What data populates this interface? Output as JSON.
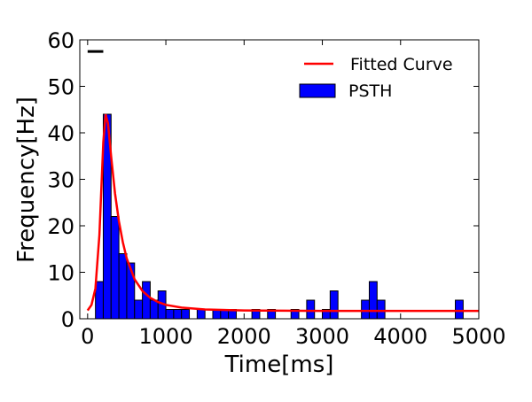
{
  "chart_data": {
    "type": "bar",
    "xlabel": "Time[ms]",
    "ylabel": "Frequency[Hz]",
    "xlim": [
      -100,
      5000
    ],
    "ylim": [
      0,
      60
    ],
    "xticks": [
      0,
      1000,
      2000,
      3000,
      4000,
      5000
    ],
    "yticks": [
      0,
      10,
      20,
      30,
      40,
      50,
      60
    ],
    "legend_position": "upper-right",
    "grid": false,
    "bin_width_ms": 100,
    "series": [
      {
        "name": "PSTH",
        "kind": "histogram",
        "color": "#0000ff",
        "edge_color": "#000000",
        "bins_start_ms": [
          100,
          200,
          300,
          400,
          500,
          600,
          700,
          800,
          900,
          1000,
          1100,
          1200,
          1400,
          1600,
          1700,
          1800,
          2100,
          2300,
          2600,
          2800,
          3000,
          3100,
          3500,
          3600,
          3700,
          4700
        ],
        "values": [
          8,
          44,
          22,
          14,
          12,
          4,
          8,
          4,
          6,
          2,
          2,
          2,
          2,
          2,
          2,
          2,
          2,
          2,
          2,
          4,
          2,
          6,
          4,
          8,
          4,
          4
        ]
      },
      {
        "name": "Fitted Curve",
        "kind": "line",
        "color": "#ff0000",
        "x": [
          0,
          50,
          100,
          150,
          200,
          230,
          260,
          300,
          350,
          400,
          450,
          500,
          600,
          700,
          800,
          900,
          1000,
          1200,
          1500,
          2000,
          3000,
          5000
        ],
        "y": [
          1.8,
          3.0,
          6.5,
          18,
          38,
          44,
          42,
          35,
          27,
          21,
          16.5,
          13,
          8.5,
          6,
          4.5,
          3.6,
          3.0,
          2.4,
          2.0,
          1.8,
          1.7,
          1.7
        ]
      }
    ],
    "legend": {
      "fitted_label": "Fitted Curve",
      "psth_label": "PSTH"
    },
    "scale_bar": {
      "x": [
        0,
        200
      ],
      "y": 57.5
    }
  }
}
